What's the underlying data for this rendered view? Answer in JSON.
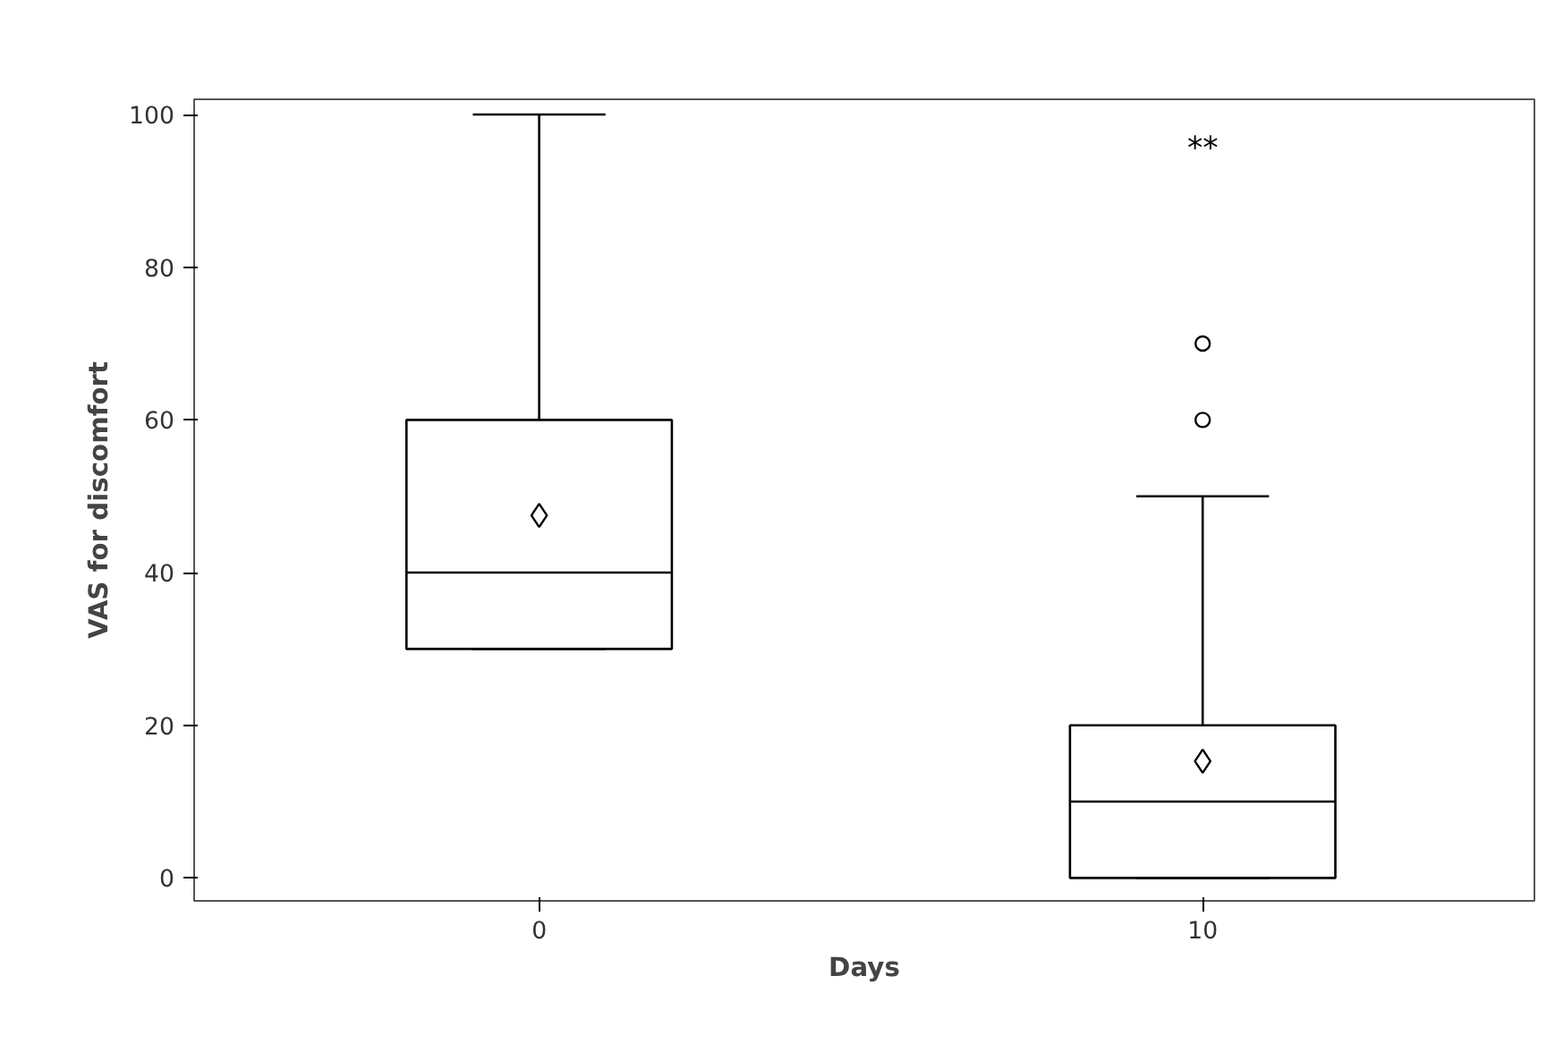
{
  "chart_data": {
    "type": "box",
    "xlabel": "Days",
    "ylabel": "VAS for discomfort",
    "categories": [
      "0",
      "10"
    ],
    "boxes": [
      {
        "low": 30,
        "q1": 30,
        "median": 40,
        "q3": 60,
        "high": 100,
        "mean": 47.5
      },
      {
        "low": 0,
        "q1": 0,
        "median": 10,
        "q3": 20,
        "high": 50,
        "mean": 15.3,
        "outliers": [
          60,
          70
        ]
      }
    ],
    "ylim": [
      -3,
      102
    ],
    "yticks": [
      0,
      20,
      40,
      60,
      80,
      100
    ],
    "annotations": [
      "**"
    ]
  }
}
